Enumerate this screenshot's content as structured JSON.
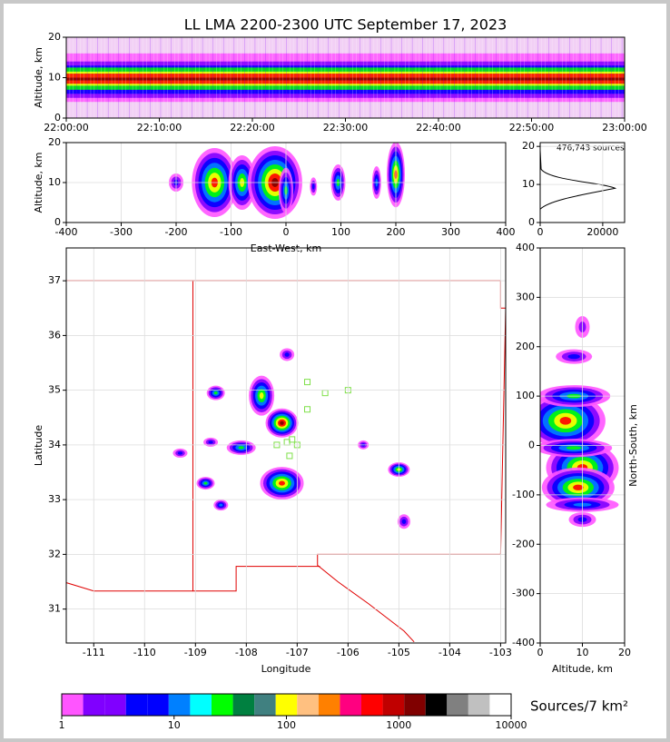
{
  "chart_data": [
    {
      "type": "time-height",
      "title": "LL LMA 2200-2300 UTC September 17, 2023",
      "ylabel": "Altitude, km",
      "xlim": [
        "22:00:00",
        "23:00:00"
      ],
      "xticks": [
        "22:00:00",
        "22:10:00",
        "22:20:00",
        "22:30:00",
        "22:40:00",
        "22:50:00",
        "23:00:00"
      ],
      "ylim": [
        0,
        20
      ],
      "yticks": [
        0,
        10,
        20
      ],
      "grid": false
    },
    {
      "type": "east-west",
      "xlabel": "East-West, km",
      "ylabel": "Altitude, km",
      "xlim": [
        -400,
        400
      ],
      "xticks": [
        -400,
        -300,
        -200,
        -100,
        0,
        100,
        200,
        300,
        400
      ],
      "ylim": [
        0,
        20
      ],
      "yticks": [
        0,
        10,
        20
      ],
      "grid": true
    },
    {
      "type": "profile",
      "annotation": "476,743 sources",
      "xlim": [
        0,
        27000
      ],
      "xticks": [
        0,
        20000
      ],
      "ylim": [
        0,
        21
      ],
      "yticks": [
        0,
        10,
        20
      ],
      "grid": true
    },
    {
      "type": "map",
      "xlabel": "Longitude",
      "ylabel": "Latitude",
      "xlim": [
        -111.54,
        -102.9
      ],
      "xticks": [
        -111,
        -110,
        -109,
        -108,
        -107,
        -106,
        -105,
        -104,
        -103
      ],
      "ylim": [
        30.38,
        37.6
      ],
      "yticks": [
        31,
        32,
        33,
        34,
        35,
        36,
        37
      ],
      "grid": true
    },
    {
      "type": "north-south",
      "xlabel": "Altitude, km",
      "ylabel": "North-South, km",
      "xlim": [
        0,
        20
      ],
      "xticks": [
        0,
        10,
        20
      ],
      "ylim": [
        -400,
        400
      ],
      "yticks": [
        -400,
        -300,
        -200,
        -100,
        0,
        100,
        200,
        300,
        400
      ],
      "grid": true
    },
    {
      "type": "colorbar",
      "label": "Sources/7 km²",
      "log": true,
      "xlim": [
        1,
        10000
      ],
      "xticks": [
        1,
        10,
        100,
        1000,
        10000
      ],
      "colors": [
        "#ff55ff",
        "#8000ff",
        "#8000ff",
        "#0000ff",
        "#0000ff",
        "#0080ff",
        "#00ffff",
        "#00ff00",
        "#008040",
        "#408080",
        "#ffff00",
        "#ffc080",
        "#ff8000",
        "#ff0080",
        "#ff0000",
        "#c00000",
        "#800000",
        "#000000",
        "#808080",
        "#c0c0c0",
        "#ffffff"
      ]
    }
  ]
}
